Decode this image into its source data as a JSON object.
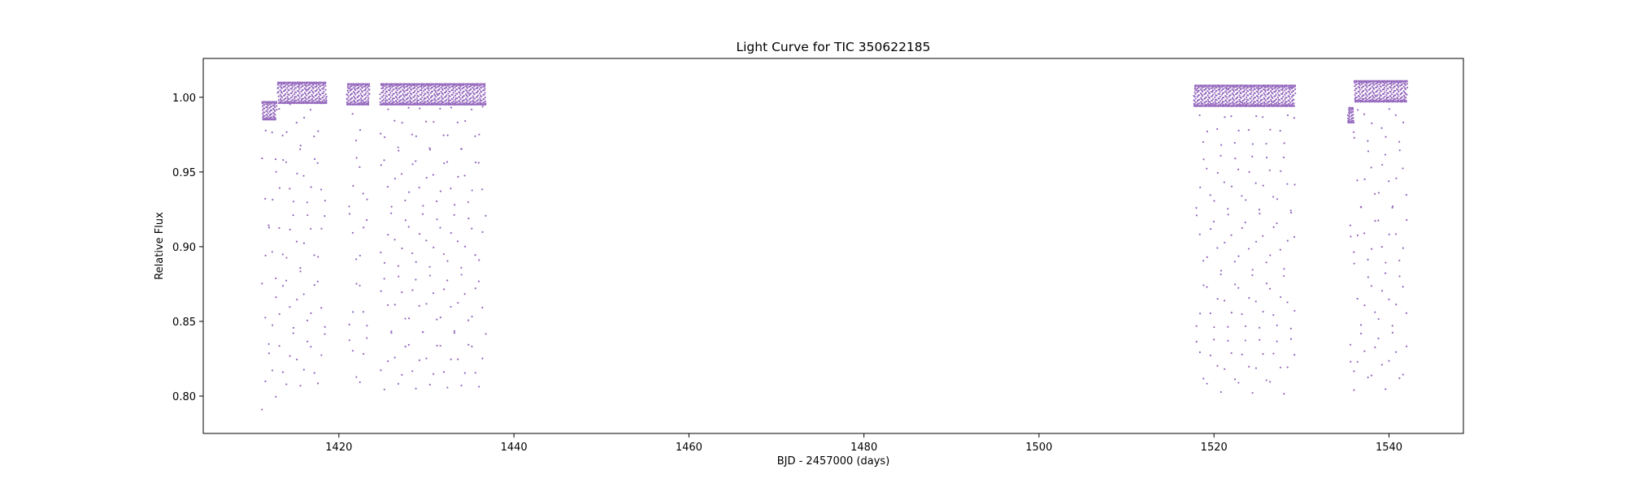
{
  "chart_data": {
    "type": "scatter",
    "title": "Light Curve for TIC 350622185",
    "xlabel": "BJD - 2457000 (days)",
    "ylabel": "Relative Flux",
    "xlim": [
      1404.5,
      1548.5
    ],
    "ylim": [
      0.775,
      1.026
    ],
    "xticks": [
      1420,
      1440,
      1460,
      1480,
      1500,
      1520,
      1540
    ],
    "yticks": [
      0.8,
      0.85,
      0.9,
      0.95,
      1.0
    ],
    "xtick_labels": [
      "1420",
      "1440",
      "1460",
      "1480",
      "1500",
      "1520",
      "1540"
    ],
    "ytick_labels": [
      "0.80",
      "0.85",
      "0.90",
      "0.95",
      "1.00"
    ],
    "grid": false,
    "marker_color": "#9467bd",
    "eclipse_period_days": 0.4,
    "eclipse_depth_min": 0.8,
    "segments": [
      {
        "start": 1411.2,
        "end": 1412.9,
        "baseline": 0.991,
        "amplitude": 0.006
      },
      {
        "start": 1413.0,
        "end": 1418.6,
        "baseline": 1.003,
        "amplitude": 0.007
      },
      {
        "start": 1420.9,
        "end": 1423.5,
        "baseline": 1.002,
        "amplitude": 0.007
      },
      {
        "start": 1424.7,
        "end": 1436.8,
        "baseline": 1.002,
        "amplitude": 0.007
      },
      {
        "start": 1517.7,
        "end": 1529.3,
        "baseline": 1.001,
        "amplitude": 0.007
      },
      {
        "start": 1535.3,
        "end": 1536.0,
        "baseline": 0.988,
        "amplitude": 0.005
      },
      {
        "start": 1536.0,
        "end": 1542.1,
        "baseline": 1.004,
        "amplitude": 0.007
      }
    ]
  }
}
